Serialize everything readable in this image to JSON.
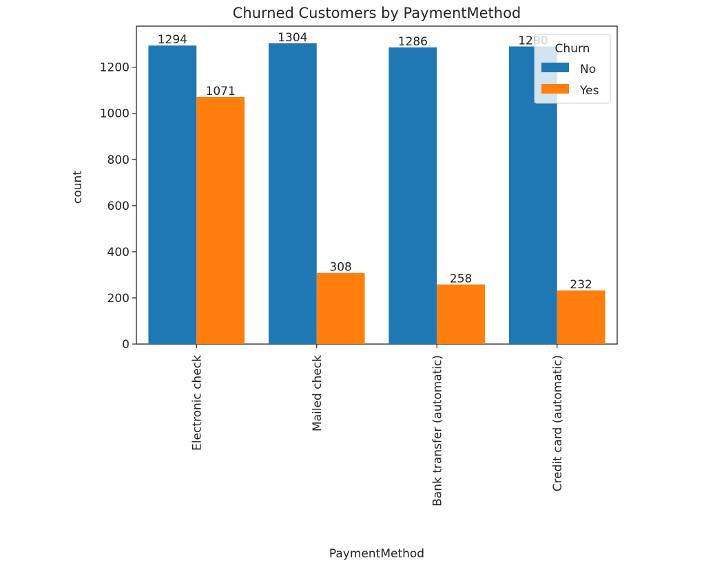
{
  "chart_data": {
    "type": "bar",
    "title": "Churned Customers  by PaymentMethod",
    "xlabel": "PaymentMethod",
    "ylabel": "count",
    "categories": [
      "Electronic check",
      "Mailed check",
      "Bank transfer (automatic)",
      "Credit card (automatic)"
    ],
    "series": [
      {
        "name": "No",
        "color": "#1f77b4",
        "values": [
          1294,
          1304,
          1286,
          1290
        ]
      },
      {
        "name": "Yes",
        "color": "#ff7f0e",
        "values": [
          1071,
          308,
          258,
          232
        ]
      }
    ],
    "ylim": [
      0,
      1378
    ],
    "yticks": [
      0,
      200,
      400,
      600,
      800,
      1000,
      1200
    ],
    "grid": false,
    "legend": {
      "title": "Churn",
      "placement": "top-right"
    }
  }
}
